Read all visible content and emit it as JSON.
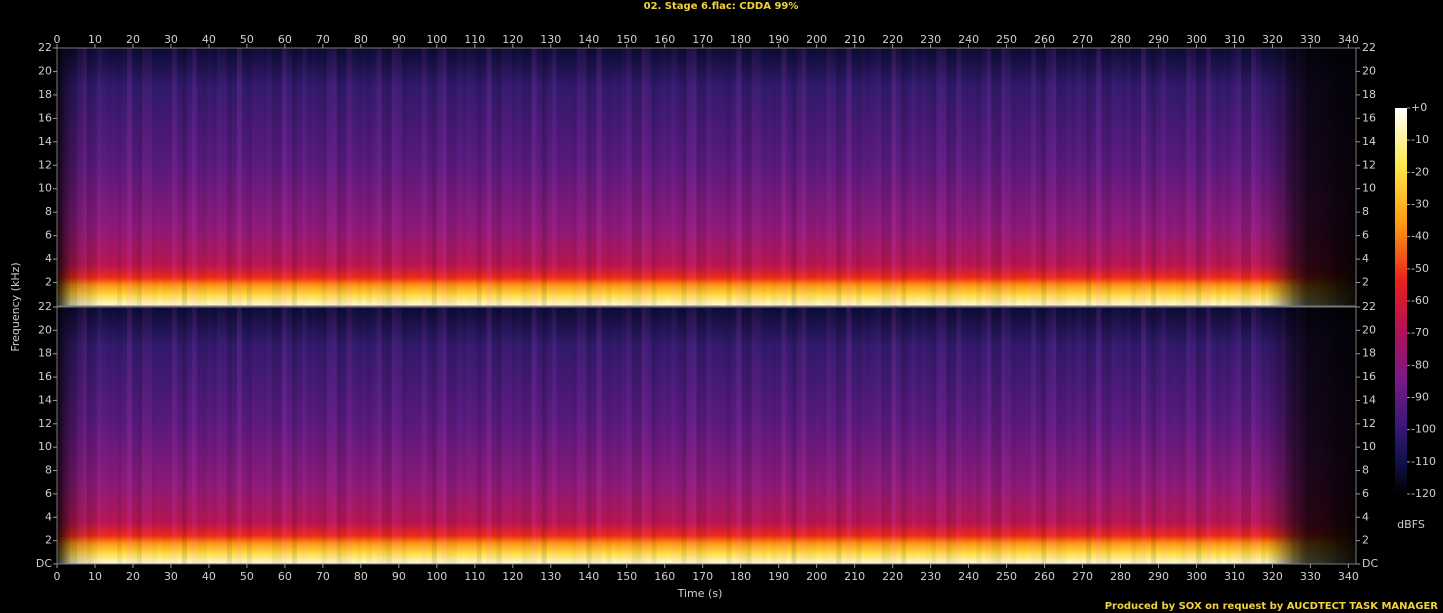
{
  "chart_data": {
    "type": "spectrogram",
    "title": "02. Stage 6.flac: CDDA 99%",
    "x_label": "Time (s)",
    "y_label": "Frequency (kHz)",
    "xlim": [
      0,
      342
    ],
    "xticks": [
      0,
      10,
      20,
      30,
      40,
      50,
      60,
      70,
      80,
      90,
      100,
      110,
      120,
      130,
      140,
      150,
      160,
      170,
      180,
      190,
      200,
      210,
      220,
      230,
      240,
      250,
      260,
      270,
      280,
      290,
      300,
      310,
      320,
      330,
      340
    ],
    "panels": [
      {
        "ylim": [
          0,
          22
        ],
        "yticks": [
          2,
          4,
          6,
          8,
          10,
          12,
          14,
          16,
          18,
          20,
          22
        ]
      },
      {
        "ylim": [
          0,
          22
        ],
        "yticks": [
          {
            "value": 0,
            "label": "DC"
          },
          2,
          4,
          6,
          8,
          10,
          12,
          14,
          16,
          18,
          20,
          22
        ]
      }
    ],
    "colorbar": {
      "label": "dBFS",
      "lim": [
        -120,
        0
      ],
      "ticks": [
        {
          "value": 0,
          "label": "+0"
        },
        -10,
        -20,
        -30,
        -40,
        -50,
        -60,
        -70,
        -80,
        -90,
        -100,
        -110,
        -120
      ]
    },
    "credit": "Produced by SOX on request by AUCDTECT TASK MANAGER"
  }
}
